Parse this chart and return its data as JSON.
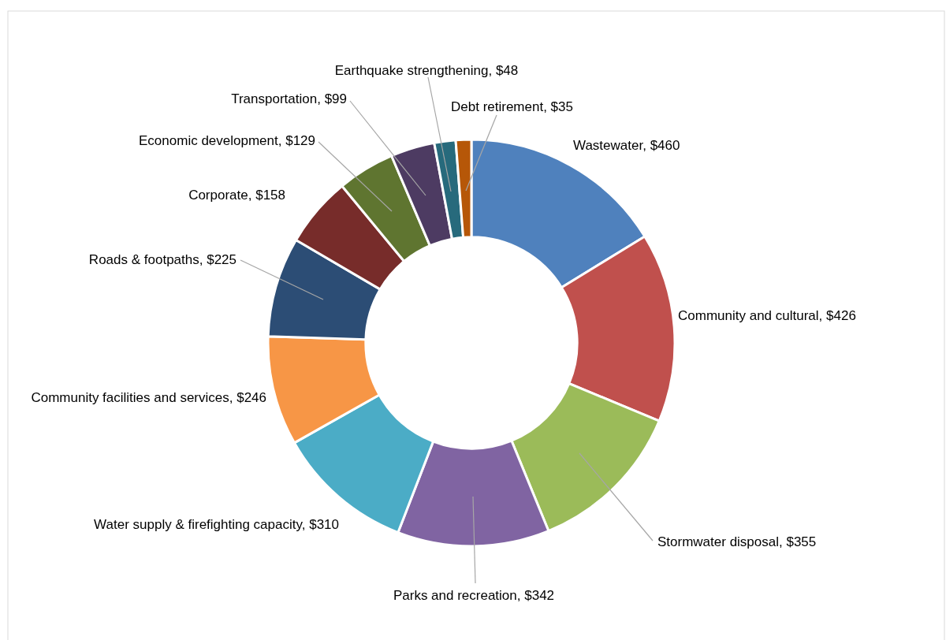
{
  "chart_data": {
    "type": "donut",
    "categories": [
      "Wastewater",
      "Community and cultural",
      "Stormwater disposal",
      "Parks and recreation",
      "Water supply & firefighting capacity",
      "Community facilities and services",
      "Roads & footpaths",
      "Corporate",
      "Economic development",
      "Transportation",
      "Earthquake strengthening",
      "Debt retirement"
    ],
    "values": [
      460,
      426,
      355,
      342,
      310,
      246,
      225,
      158,
      129,
      99,
      48,
      35
    ],
    "value_labels": [
      ",  $460",
      ",  $426",
      ",  $355",
      ",  $342",
      ",  $310",
      ",  $246",
      ",  $225",
      ",  $158",
      ",  $129",
      ",  $99",
      ",  $48",
      ",  $35"
    ],
    "colors": [
      "#4f81bd",
      "#c0504d",
      "#9bbb59",
      "#8064a2",
      "#4bacc6",
      "#f79646",
      "#2c4d75",
      "#772c2a",
      "#5f7530",
      "#4d3b62",
      "#276a7c",
      "#b65708"
    ]
  }
}
